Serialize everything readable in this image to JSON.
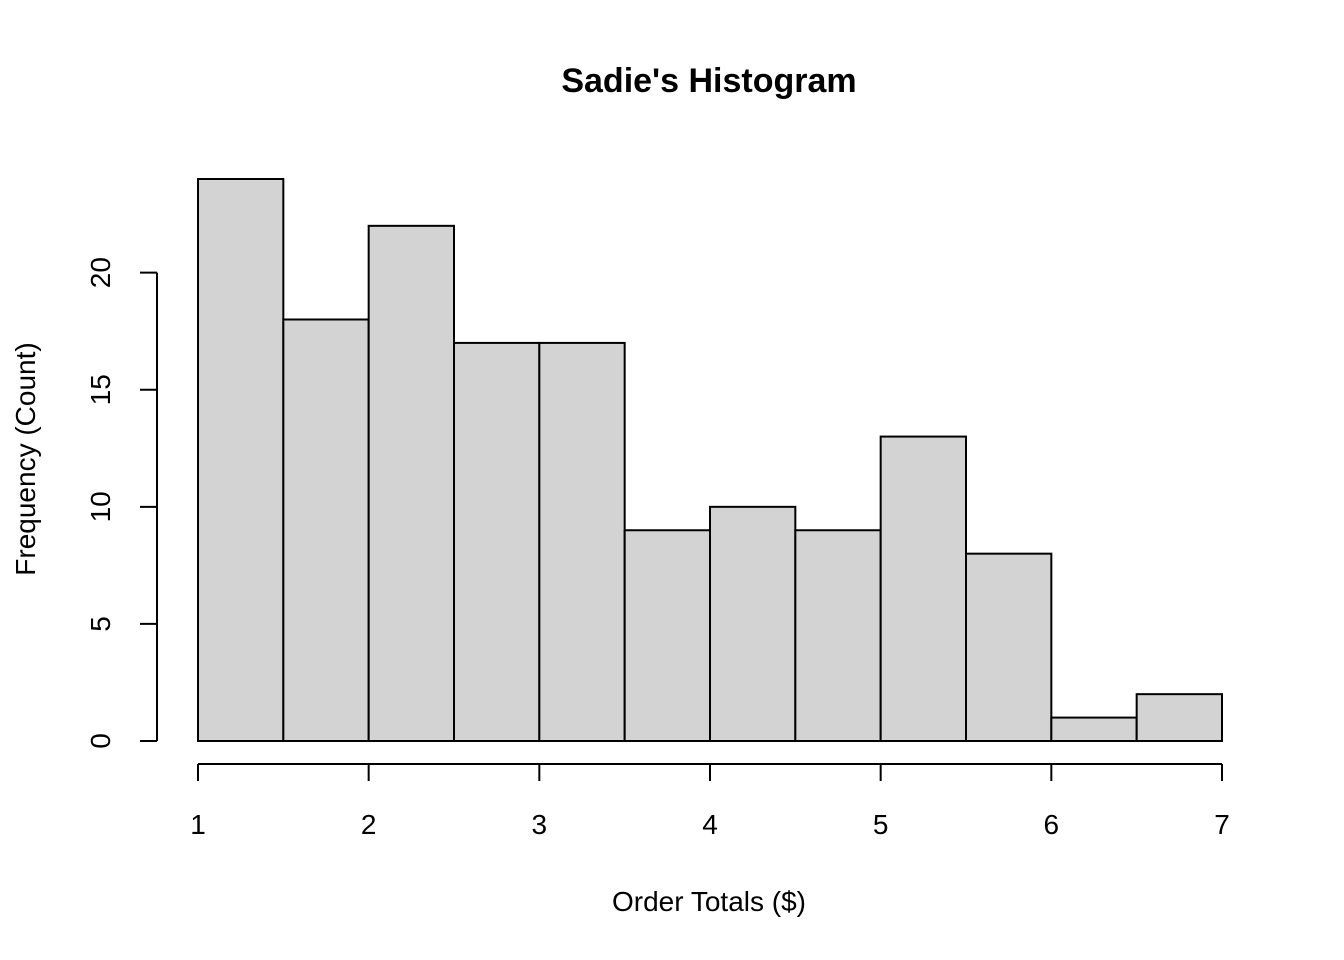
{
  "chart_data": {
    "type": "bar",
    "title": "Sadie's Histogram",
    "xlabel": "Order Totals ($)",
    "ylabel": "Frequency (Count)",
    "bin_edges": [
      1,
      1.5,
      2,
      2.5,
      3,
      3.5,
      4,
      4.5,
      5,
      5.5,
      6,
      6.5,
      7
    ],
    "values": [
      24,
      18,
      22,
      17,
      17,
      9,
      10,
      9,
      13,
      8,
      1,
      2
    ],
    "xlim": [
      1,
      7
    ],
    "ylim": [
      0,
      24
    ],
    "x_ticks": [
      "1",
      "2",
      "3",
      "4",
      "5",
      "6",
      "7"
    ],
    "y_ticks": [
      "0",
      "5",
      "10",
      "15",
      "20"
    ],
    "grid": false,
    "colors": {
      "bar_fill": "#d3d3d3",
      "bar_stroke": "#000000",
      "background": "#ffffff"
    }
  }
}
